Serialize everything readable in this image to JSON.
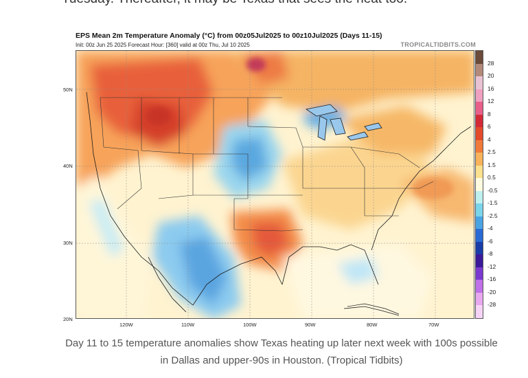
{
  "article": {
    "top_text": "Tuesday. Thereafter, it may be Texas that sees the heat too.",
    "caption": "Day 11 to 15 temperature anomalies show Texas heating up later next week with 100s possible in Dallas and upper-90s in Houston. (Tropical Tidbits)"
  },
  "map": {
    "title": "EPS Mean 2m Temperature Anomaly (°C) from 00z05Jul2025 to 00z10Jul2025 (Days 11-15)",
    "subtitle": "Init: 00z Jun 25 2025   Forecast Hour: [360]   valid at 00z Thu, Jul 10 2025",
    "credit": "TROPICALTIDBITS.COM",
    "lat_labels": [
      "50N",
      "40N",
      "30N",
      "20N"
    ],
    "lon_labels": [
      "120W",
      "110W",
      "100W",
      "90W",
      "80W",
      "70W"
    ],
    "colorbar": {
      "labels": [
        "28",
        "20",
        "16",
        "12",
        "8",
        "6",
        "4",
        "2.5",
        "1.5",
        "0.5",
        "-0.5",
        "-1.5",
        "-2.5",
        "-4",
        "-6",
        "-8",
        "-12",
        "-16",
        "-20",
        "-28"
      ],
      "colors": [
        "#6b4a3a",
        "#b38a7a",
        "#e9c3d3",
        "#f0a0c0",
        "#e8608a",
        "#d42a38",
        "#e24a2a",
        "#f07a3a",
        "#f7b25a",
        "#fbe08e",
        "#fffbe0",
        "#bff0f0",
        "#7ad4ea",
        "#4aa4e4",
        "#2a6ad4",
        "#1a3ca8",
        "#3a1a9a",
        "#7a3ad0",
        "#c070e8",
        "#e8a8f0",
        "#f6d4f6"
      ]
    }
  }
}
